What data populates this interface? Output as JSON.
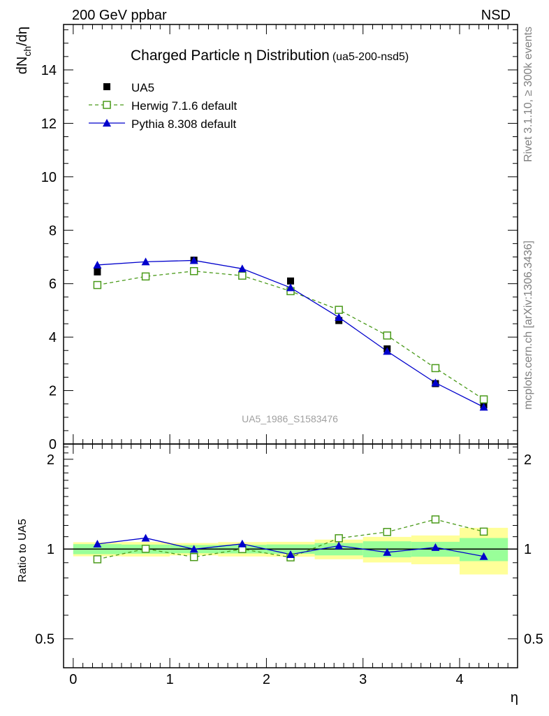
{
  "header": {
    "left": "200 GeV ppbar",
    "right": "NSD"
  },
  "side_labels": {
    "rivet": "Rivet 3.1.10, ≥ 300k events",
    "mcplots": "mcplots.cern.ch [arXiv:1306.3436]"
  },
  "chart_data": [
    {
      "type": "scatter",
      "title": "Charged Particle η Distribution",
      "subtitle": "(ua5-200-nsd5)",
      "watermark": "UA5_1986_S1583476",
      "ylabel": "dN",
      "ylabel_sub": "ch",
      "ylabel_tail": "/dη",
      "xlim": [
        -0.1,
        4.6
      ],
      "ylim": [
        0,
        15.7
      ],
      "yticks": [
        0,
        2,
        4,
        6,
        8,
        10,
        12,
        14
      ],
      "legend_position": "top-left",
      "series": [
        {
          "name": "UA5",
          "marker": "filled-square",
          "color": "#000000",
          "x": [
            0.25,
            0.75,
            1.25,
            1.75,
            2.25,
            2.75,
            3.25,
            3.75,
            4.25
          ],
          "y": [
            6.44,
            6.26,
            6.88,
            6.3,
            6.1,
            4.62,
            3.56,
            2.26,
            1.46
          ],
          "band_inner": [
            0.25,
            0.22,
            0.22,
            0.21,
            0.22,
            0.22,
            0.22,
            0.13,
            0.13
          ],
          "band_outer": [
            0.35,
            0.35,
            0.33,
            0.35,
            0.35,
            0.35,
            0.35,
            0.25,
            0.26
          ]
        },
        {
          "name": "Herwig 7.1.6 default",
          "marker": "open-square",
          "line": "dashed",
          "color": "#4a9a1a",
          "x": [
            0.25,
            0.75,
            1.25,
            1.75,
            2.25,
            2.75,
            3.25,
            3.75,
            4.25
          ],
          "y": [
            5.95,
            6.27,
            6.47,
            6.3,
            5.72,
            5.02,
            4.06,
            2.84,
            1.67
          ]
        },
        {
          "name": "Pythia 8.308 default",
          "marker": "filled-triangle",
          "line": "solid",
          "color": "#0000cc",
          "x": [
            0.25,
            0.75,
            1.25,
            1.75,
            2.25,
            2.75,
            3.25,
            3.75,
            4.25
          ],
          "y": [
            6.7,
            6.82,
            6.87,
            6.56,
            5.85,
            4.74,
            3.47,
            2.29,
            1.38
          ]
        }
      ]
    },
    {
      "type": "scatter",
      "ylabel": "Ratio to UA5",
      "xlabel": "η",
      "xlim": [
        -0.1,
        4.6
      ],
      "ylim": [
        0.4,
        2.25
      ],
      "ylog": true,
      "yticks": [
        0.5,
        1,
        2
      ],
      "xticks": [
        0,
        1,
        2,
        3,
        4
      ],
      "series": [
        {
          "name": "Herwig 7.1.6 default",
          "x": [
            0.25,
            0.75,
            1.25,
            1.75,
            2.25,
            2.75,
            3.25,
            3.75,
            4.25
          ],
          "y": [
            0.924,
            1.002,
            0.94,
            1.0,
            0.938,
            1.087,
            1.141,
            1.257,
            1.144
          ]
        },
        {
          "name": "Pythia 8.308 default",
          "x": [
            0.25,
            0.75,
            1.25,
            1.75,
            2.25,
            2.75,
            3.25,
            3.75,
            4.25
          ],
          "y": [
            1.04,
            1.089,
            0.999,
            1.041,
            0.959,
            1.026,
            0.975,
            1.013,
            0.945
          ]
        }
      ]
    }
  ]
}
